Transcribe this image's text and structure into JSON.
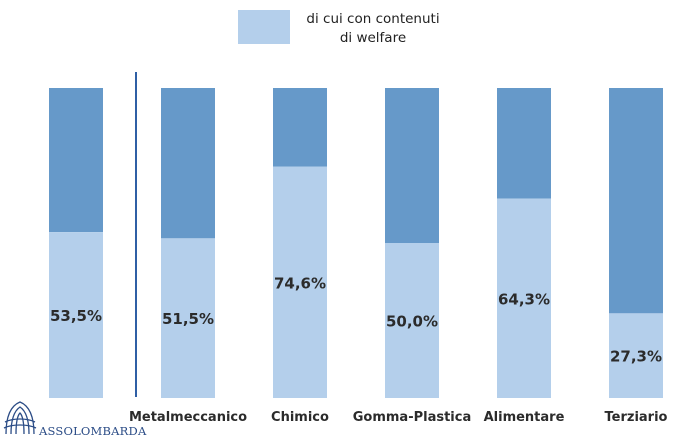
{
  "chart_data": {
    "type": "bar",
    "categories": [
      "",
      "Metalmeccanico",
      "Chimico",
      "Gomma-Plastica",
      "Alimentare",
      "Terziario"
    ],
    "series": [
      {
        "name": "di cui con contenuti di welfare",
        "values": [
          53.5,
          51.5,
          74.6,
          50.0,
          64.3,
          27.3
        ]
      },
      {
        "name": "",
        "values": [
          46.5,
          48.5,
          25.4,
          50.0,
          35.7,
          72.7
        ]
      }
    ],
    "value_labels": [
      "53,5%",
      "51,5%",
      "74,6%",
      "50,0%",
      "64,3%",
      "27,3%"
    ],
    "stacked": true,
    "ylim": [
      0,
      100
    ],
    "grid": false,
    "legend_position": "top",
    "colors": {
      "welfare": "#b4cfeb",
      "rest": "#6699c9",
      "separator": "#2f5fa5",
      "label": "#2b2b2b"
    }
  },
  "legend": {
    "line1": "di cui con contenuti",
    "line2": "di welfare"
  },
  "logo": {
    "name": "ASSOLOMBARDA",
    "icon": "assolombarda-logo-icon",
    "color": "#2b4c86"
  }
}
